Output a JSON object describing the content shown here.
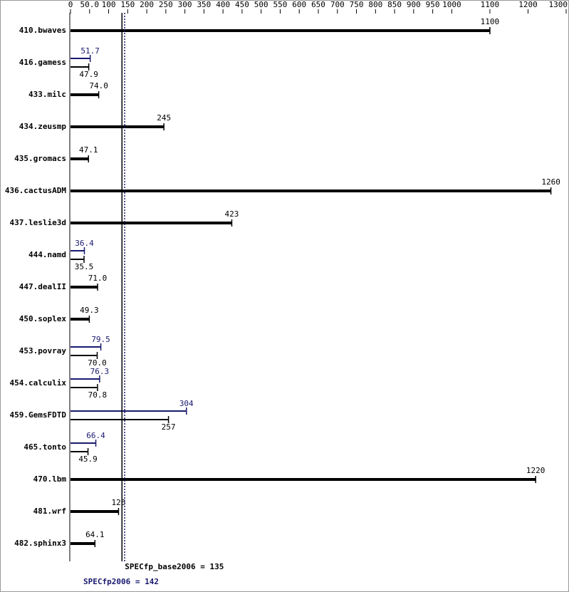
{
  "chart_data": {
    "type": "bar",
    "categories": [
      "410.bwaves",
      "416.gamess",
      "433.milc",
      "434.zeusmp",
      "435.gromacs",
      "436.cactusADM",
      "437.leslie3d",
      "444.namd",
      "447.dealII",
      "450.soplex",
      "453.povray",
      "454.calculix",
      "459.GemsFDTD",
      "465.tonto",
      "470.lbm",
      "481.wrf",
      "482.sphinx3"
    ],
    "series": [
      {
        "name": "base",
        "color": "#000000",
        "values": [
          1100,
          47.9,
          74.0,
          245,
          47.1,
          1260,
          423,
          35.5,
          71.0,
          49.3,
          70.0,
          70.8,
          257,
          45.9,
          1220,
          126,
          64.1
        ],
        "value_labels": [
          "1100",
          "47.9",
          "74.0",
          "245",
          "47.1",
          "1260",
          "423",
          "35.5",
          "71.0",
          "49.3",
          "70.0",
          "70.8",
          "257",
          "45.9",
          "1220",
          "126",
          "64.1"
        ]
      },
      {
        "name": "peak",
        "color": "#191970",
        "values": [
          null,
          51.7,
          null,
          null,
          null,
          null,
          null,
          36.4,
          null,
          null,
          79.5,
          76.3,
          304,
          66.4,
          null,
          null,
          null
        ],
        "value_labels": [
          null,
          "51.7",
          null,
          null,
          null,
          null,
          null,
          "36.4",
          null,
          null,
          "79.5",
          "76.3",
          "304",
          "66.4",
          null,
          null,
          null
        ]
      }
    ],
    "xlim": [
      0,
      1300
    ],
    "xticks": [
      0,
      {
        "value": 50,
        "label": "50.0"
      },
      100,
      150,
      200,
      250,
      300,
      350,
      400,
      450,
      500,
      550,
      600,
      650,
      700,
      750,
      800,
      850,
      900,
      950,
      1000,
      1100,
      1200,
      1300
    ],
    "references": [
      {
        "text": "SPECfp_base2006 = 135",
        "value": 135,
        "color": "#000000",
        "style": "solid"
      },
      {
        "text": "SPECfp2006 = 142",
        "value": 142,
        "color": "#191970",
        "style": "dotted"
      }
    ]
  }
}
